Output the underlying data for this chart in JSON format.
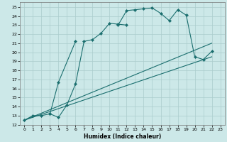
{
  "title": "",
  "xlabel": "Humidex (Indice chaleur)",
  "background_color": "#cce8e8",
  "grid_color": "#aacccc",
  "line_color": "#1a6e6e",
  "xlim": [
    -0.5,
    23.5
  ],
  "ylim": [
    12,
    25.5
  ],
  "xticks": [
    0,
    1,
    2,
    3,
    4,
    5,
    6,
    7,
    8,
    9,
    10,
    11,
    12,
    13,
    14,
    15,
    16,
    17,
    18,
    19,
    20,
    21,
    22,
    23
  ],
  "yticks": [
    12,
    13,
    14,
    15,
    16,
    17,
    18,
    19,
    20,
    21,
    22,
    23,
    24,
    25
  ],
  "curve1_x": [
    0,
    1,
    2,
    3,
    4,
    5,
    6,
    7,
    8,
    9,
    10,
    11,
    12
  ],
  "curve1_y": [
    12.5,
    13.0,
    13.0,
    13.2,
    12.8,
    14.2,
    16.5,
    21.2,
    21.4,
    22.1,
    23.2,
    23.1,
    23.0
  ],
  "curve2_x": [
    3,
    4,
    6
  ],
  "curve2_y": [
    13.2,
    16.7,
    21.2
  ],
  "curve3_x": [
    11,
    12,
    13,
    14,
    15,
    16,
    17,
    18,
    19,
    20,
    21,
    22
  ],
  "curve3_y": [
    23.0,
    24.6,
    24.7,
    24.8,
    24.9,
    24.3,
    23.5,
    24.7,
    24.1,
    19.5,
    19.2,
    20.1
  ],
  "line1_x": [
    0,
    22
  ],
  "line1_y": [
    12.5,
    19.5
  ],
  "line2_x": [
    0,
    22
  ],
  "line2_y": [
    12.5,
    21.0
  ]
}
